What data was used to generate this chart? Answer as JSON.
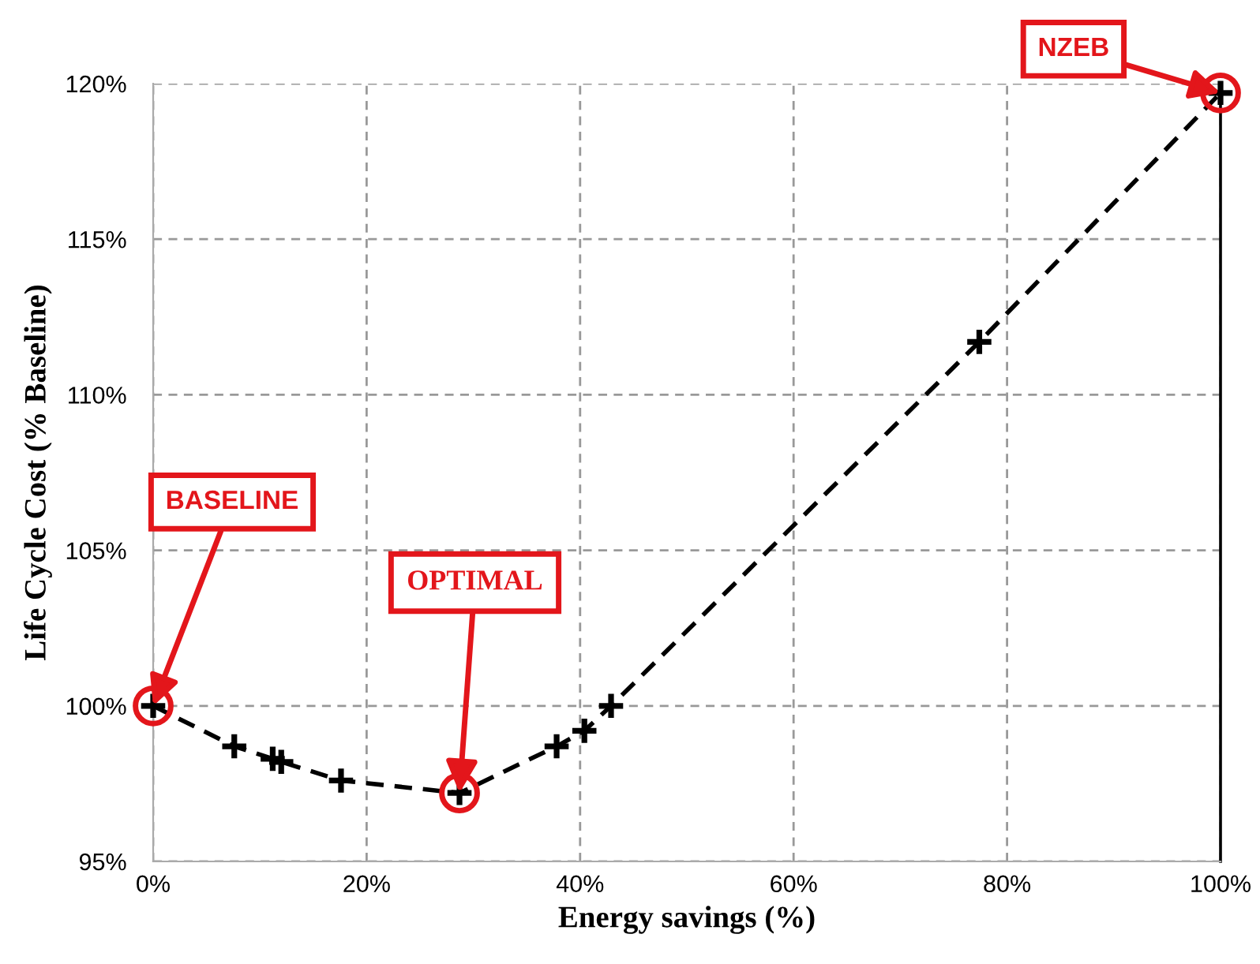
{
  "chart_data": {
    "type": "line",
    "xlabel": "Energy savings (%)",
    "ylabel": "Life Cycle Cost (% Baseline)",
    "x": [
      0,
      7.6,
      11.2,
      12.0,
      17.6,
      28.7,
      37.8,
      40.4,
      42.9,
      77.4,
      100
    ],
    "values": [
      100.0,
      98.7,
      98.3,
      98.2,
      97.6,
      97.2,
      98.7,
      99.2,
      100.0,
      111.7,
      119.7
    ],
    "color": "#000000",
    "marker": "cross",
    "line_style": "dashed",
    "grid": true,
    "xlim": [
      0,
      100
    ],
    "ylim": [
      95,
      120
    ],
    "xticks": [
      {
        "value": 0,
        "label": "0%"
      },
      {
        "value": 20,
        "label": "20%"
      },
      {
        "value": 40,
        "label": "40%"
      },
      {
        "value": 60,
        "label": "60%"
      },
      {
        "value": 80,
        "label": "80%"
      },
      {
        "value": 100,
        "label": "100%"
      }
    ],
    "yticks": [
      {
        "value": 95,
        "label": "95%"
      },
      {
        "value": 100,
        "label": "100%"
      },
      {
        "value": 105,
        "label": "105%"
      },
      {
        "value": 110,
        "label": "110%"
      },
      {
        "value": 115,
        "label": "115%"
      },
      {
        "value": 120,
        "label": "120%"
      }
    ],
    "annotations": [
      {
        "text": "BASELINE",
        "x": 0,
        "y": 100.0
      },
      {
        "text": "OPTIMAL",
        "x": 28.7,
        "y": 97.2
      },
      {
        "text": "NZEB",
        "x": 100,
        "y": 119.7
      }
    ]
  }
}
